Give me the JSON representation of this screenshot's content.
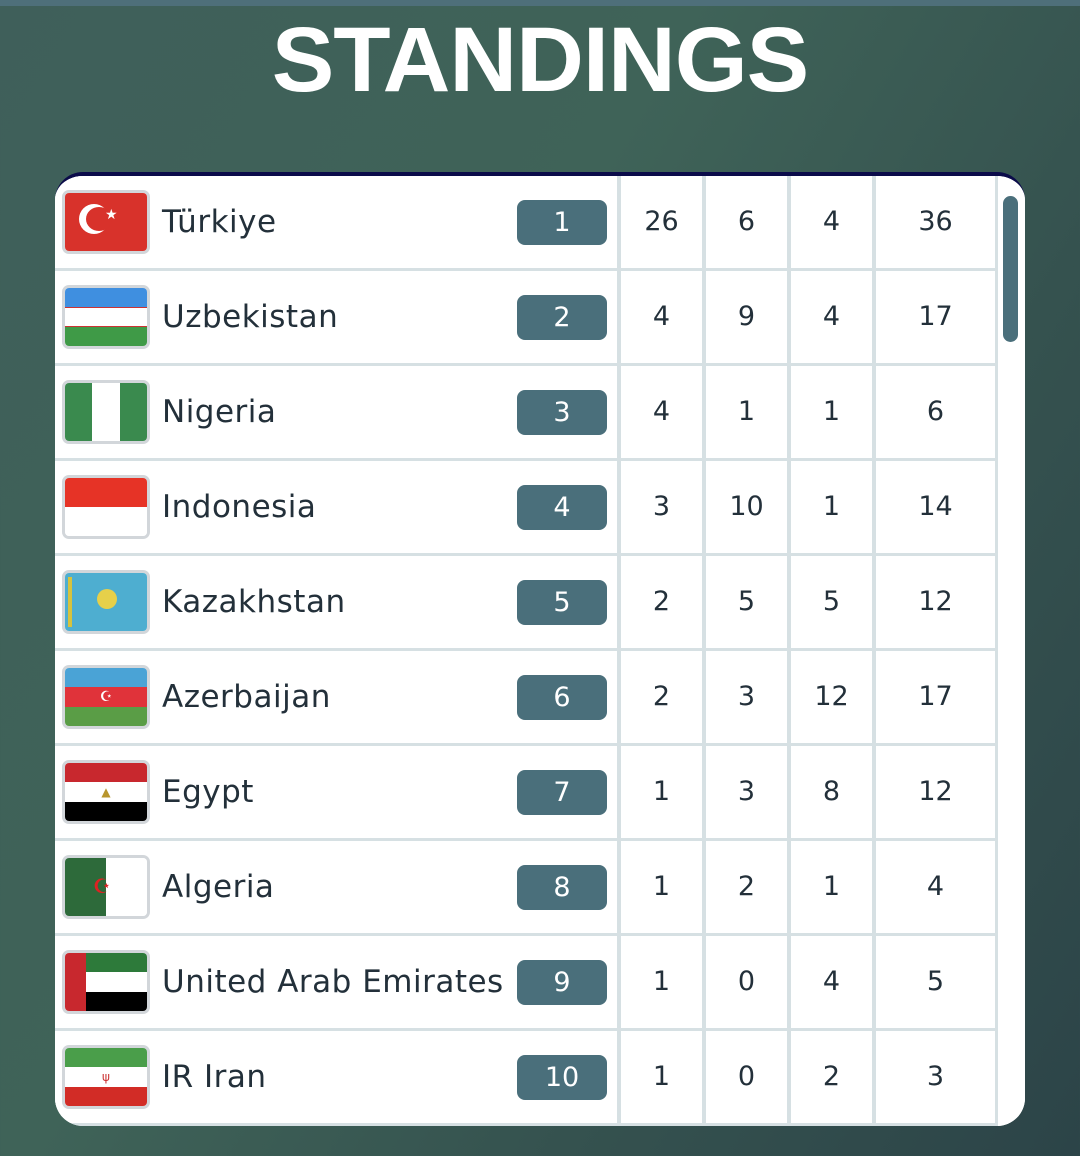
{
  "title": "STANDINGS",
  "colors": {
    "rank_badge": "#4a6f7b",
    "header_bar": "#0b0b4a",
    "background": "#3f5f5a"
  },
  "rows": [
    {
      "country": "Türkiye",
      "flag": "turkey-flag-icon",
      "rank": "1",
      "c1": "26",
      "c2": "6",
      "c3": "4",
      "total": "36"
    },
    {
      "country": "Uzbekistan",
      "flag": "uzbekistan-flag-icon",
      "rank": "2",
      "c1": "4",
      "c2": "9",
      "c3": "4",
      "total": "17"
    },
    {
      "country": "Nigeria",
      "flag": "nigeria-flag-icon",
      "rank": "3",
      "c1": "4",
      "c2": "1",
      "c3": "1",
      "total": "6"
    },
    {
      "country": "Indonesia",
      "flag": "indonesia-flag-icon",
      "rank": "4",
      "c1": "3",
      "c2": "10",
      "c3": "1",
      "total": "14"
    },
    {
      "country": "Kazakhstan",
      "flag": "kazakhstan-flag-icon",
      "rank": "5",
      "c1": "2",
      "c2": "5",
      "c3": "5",
      "total": "12"
    },
    {
      "country": "Azerbaijan",
      "flag": "azerbaijan-flag-icon",
      "rank": "6",
      "c1": "2",
      "c2": "3",
      "c3": "12",
      "total": "17"
    },
    {
      "country": "Egypt",
      "flag": "egypt-flag-icon",
      "rank": "7",
      "c1": "1",
      "c2": "3",
      "c3": "8",
      "total": "12"
    },
    {
      "country": "Algeria",
      "flag": "algeria-flag-icon",
      "rank": "8",
      "c1": "1",
      "c2": "2",
      "c3": "1",
      "total": "4"
    },
    {
      "country": "United Arab Emirates",
      "flag": "uae-flag-icon",
      "rank": "9",
      "c1": "1",
      "c2": "0",
      "c3": "4",
      "total": "5"
    },
    {
      "country": "IR Iran",
      "flag": "iran-flag-icon",
      "rank": "10",
      "c1": "1",
      "c2": "0",
      "c3": "2",
      "total": "3"
    }
  ]
}
